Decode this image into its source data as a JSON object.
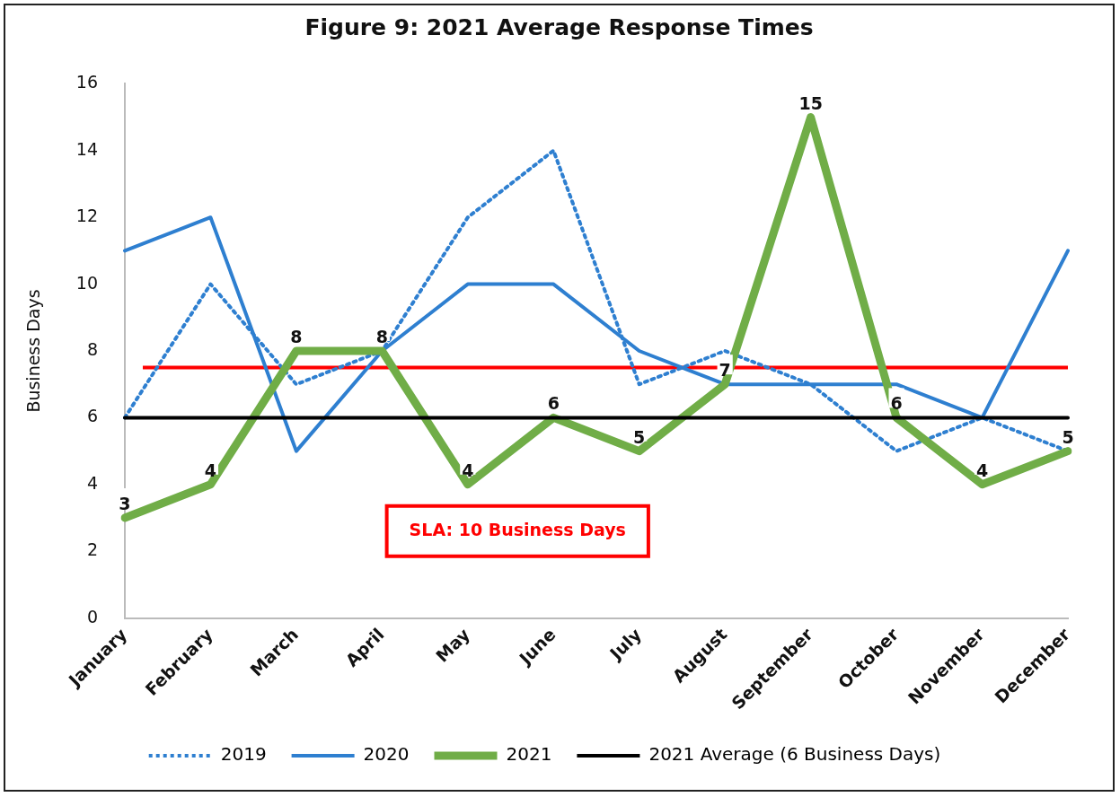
{
  "chart_data": {
    "type": "line",
    "title": "Figure 9: 2021 Average Response Times",
    "ylabel": "Business Days",
    "categories": [
      "January",
      "February",
      "March",
      "April",
      "May",
      "June",
      "July",
      "August",
      "September",
      "October",
      "November",
      "December"
    ],
    "series": [
      {
        "name": "2019",
        "color": "#2e7fd0",
        "line_style": "dotted",
        "values": [
          6,
          10,
          7,
          8,
          12,
          14,
          7,
          8,
          7,
          5,
          6,
          5
        ]
      },
      {
        "name": "2020",
        "color": "#2e7fd0",
        "line_style": "solid",
        "values": [
          11,
          12,
          5,
          8,
          10,
          10,
          8,
          7,
          7,
          7,
          6,
          11
        ]
      },
      {
        "name": "2021",
        "color": "#70ad47",
        "line_style": "solid",
        "values": [
          3,
          4,
          8,
          8,
          4,
          6,
          5,
          7,
          15,
          6,
          4,
          5
        ],
        "value_labels": [
          "3",
          "4",
          "8",
          "8",
          "4",
          "6",
          "5",
          "7",
          "15",
          "6",
          "4",
          "5"
        ]
      },
      {
        "name": "2021 Average (6 Business Days)",
        "color": "#000000",
        "line_style": "solid",
        "values": [
          6,
          6,
          6,
          6,
          6,
          6,
          6,
          6,
          6,
          6,
          6,
          6
        ]
      }
    ],
    "ref_lines": [
      {
        "axis": "y",
        "value": 7.5,
        "color": "#ff0000"
      }
    ],
    "annotations": [
      "SLA: 10 Business Days"
    ],
    "ylim": [
      0,
      16
    ],
    "yticks": [
      0,
      2,
      4,
      6,
      8,
      10,
      12,
      14,
      16
    ],
    "grid": false,
    "legend": "bottom",
    "marker": "none"
  }
}
